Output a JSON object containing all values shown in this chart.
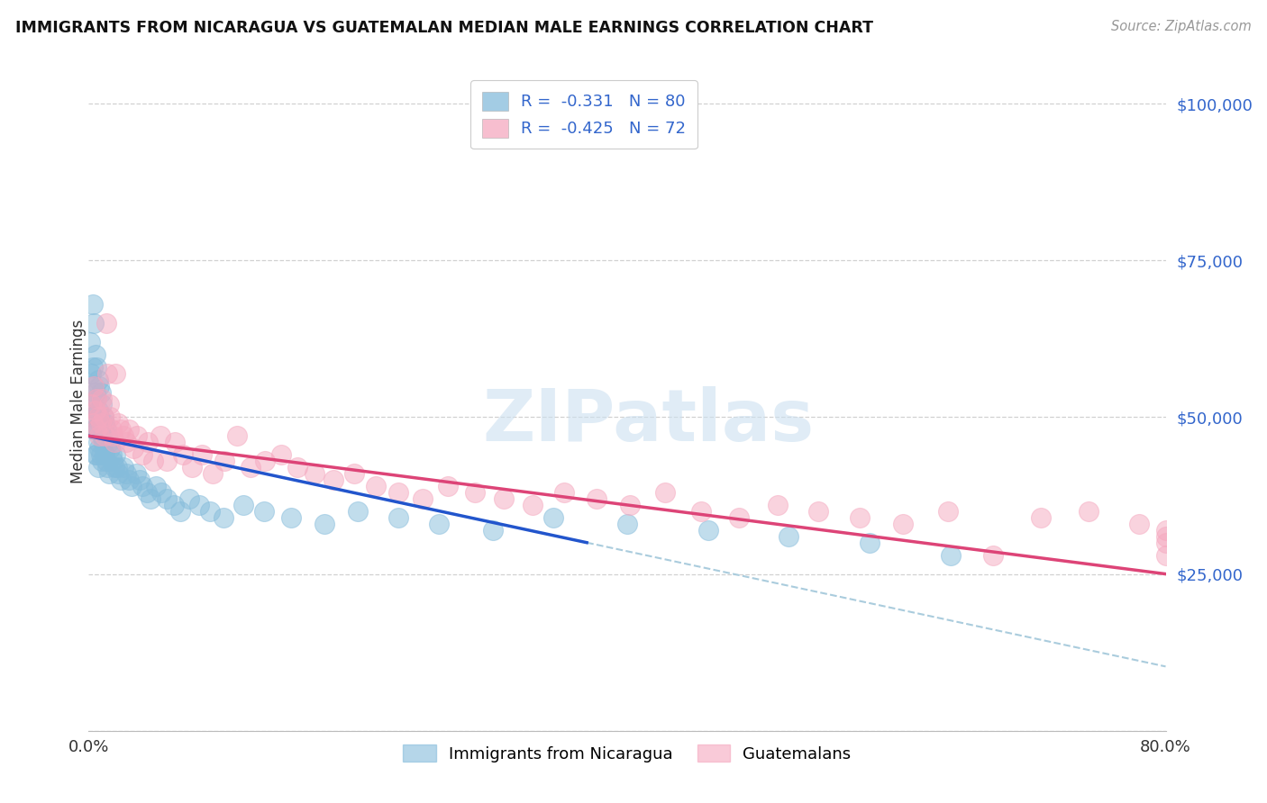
{
  "title": "IMMIGRANTS FROM NICARAGUA VS GUATEMALAN MEDIAN MALE EARNINGS CORRELATION CHART",
  "source": "Source: ZipAtlas.com",
  "ylabel": "Median Male Earnings",
  "legend_label1": "Immigrants from Nicaragua",
  "legend_label2": "Guatemalans",
  "blue_color": "#85bcdb",
  "pink_color": "#f5a8bf",
  "trend_blue": "#2255cc",
  "trend_pink": "#dd4477",
  "trend_dashed_color": "#aaccdd",
  "watermark_color": "#cce0f0",
  "background_color": "#ffffff",
  "title_color": "#111111",
  "axis_label_color": "#333333",
  "ytick_color": "#3366cc",
  "grid_color": "#cccccc",
  "legend_text_color": "#3366cc",
  "legend_r_color": "#dd2255",
  "xlim": [
    0.0,
    0.8
  ],
  "ylim": [
    0,
    105000
  ],
  "nicaragua_x": [
    0.001,
    0.002,
    0.002,
    0.003,
    0.003,
    0.003,
    0.004,
    0.004,
    0.004,
    0.005,
    0.005,
    0.005,
    0.005,
    0.006,
    0.006,
    0.006,
    0.006,
    0.007,
    0.007,
    0.007,
    0.007,
    0.008,
    0.008,
    0.008,
    0.009,
    0.009,
    0.009,
    0.01,
    0.01,
    0.01,
    0.011,
    0.011,
    0.012,
    0.012,
    0.013,
    0.013,
    0.014,
    0.014,
    0.015,
    0.015,
    0.016,
    0.017,
    0.018,
    0.019,
    0.02,
    0.021,
    0.022,
    0.024,
    0.026,
    0.028,
    0.03,
    0.032,
    0.035,
    0.038,
    0.04,
    0.043,
    0.046,
    0.05,
    0.054,
    0.058,
    0.063,
    0.068,
    0.075,
    0.082,
    0.09,
    0.1,
    0.115,
    0.13,
    0.15,
    0.175,
    0.2,
    0.23,
    0.26,
    0.3,
    0.345,
    0.4,
    0.46,
    0.52,
    0.58,
    0.64
  ],
  "nicaragua_y": [
    62000,
    57000,
    52000,
    68000,
    58000,
    50000,
    65000,
    55000,
    48000,
    60000,
    54000,
    48000,
    44000,
    58000,
    53000,
    48000,
    44000,
    56000,
    51000,
    46000,
    42000,
    55000,
    50000,
    45000,
    54000,
    49000,
    44000,
    52000,
    47000,
    43000,
    50000,
    46000,
    49000,
    44000,
    48000,
    43000,
    47000,
    42000,
    46000,
    41000,
    45000,
    44000,
    43000,
    42000,
    44000,
    42000,
    41000,
    40000,
    42000,
    41000,
    40000,
    39000,
    41000,
    40000,
    39000,
    38000,
    37000,
    39000,
    38000,
    37000,
    36000,
    35000,
    37000,
    36000,
    35000,
    34000,
    36000,
    35000,
    34000,
    33000,
    35000,
    34000,
    33000,
    32000,
    34000,
    33000,
    32000,
    31000,
    30000,
    28000
  ],
  "guatemalan_x": [
    0.002,
    0.003,
    0.004,
    0.005,
    0.006,
    0.006,
    0.007,
    0.008,
    0.009,
    0.01,
    0.011,
    0.012,
    0.013,
    0.014,
    0.015,
    0.016,
    0.017,
    0.018,
    0.019,
    0.02,
    0.022,
    0.024,
    0.026,
    0.028,
    0.03,
    0.033,
    0.036,
    0.04,
    0.044,
    0.048,
    0.053,
    0.058,
    0.064,
    0.07,
    0.077,
    0.084,
    0.092,
    0.101,
    0.11,
    0.12,
    0.131,
    0.143,
    0.155,
    0.168,
    0.182,
    0.197,
    0.213,
    0.23,
    0.248,
    0.267,
    0.287,
    0.308,
    0.33,
    0.353,
    0.377,
    0.402,
    0.428,
    0.455,
    0.483,
    0.512,
    0.542,
    0.573,
    0.605,
    0.638,
    0.672,
    0.707,
    0.743,
    0.78,
    0.818,
    0.857,
    0.897,
    0.938
  ],
  "guatemalan_y": [
    52000,
    49000,
    55000,
    51000,
    48000,
    53000,
    50000,
    47000,
    49000,
    53000,
    50000,
    47000,
    65000,
    57000,
    52000,
    50000,
    48000,
    47000,
    46000,
    57000,
    49000,
    48000,
    47000,
    46000,
    48000,
    45000,
    47000,
    44000,
    46000,
    43000,
    47000,
    43000,
    46000,
    44000,
    42000,
    44000,
    41000,
    43000,
    47000,
    42000,
    43000,
    44000,
    42000,
    41000,
    40000,
    41000,
    39000,
    38000,
    37000,
    39000,
    38000,
    37000,
    36000,
    38000,
    37000,
    36000,
    38000,
    35000,
    34000,
    36000,
    35000,
    34000,
    33000,
    35000,
    28000,
    34000,
    35000,
    33000,
    32000,
    31000,
    28000,
    30000
  ]
}
